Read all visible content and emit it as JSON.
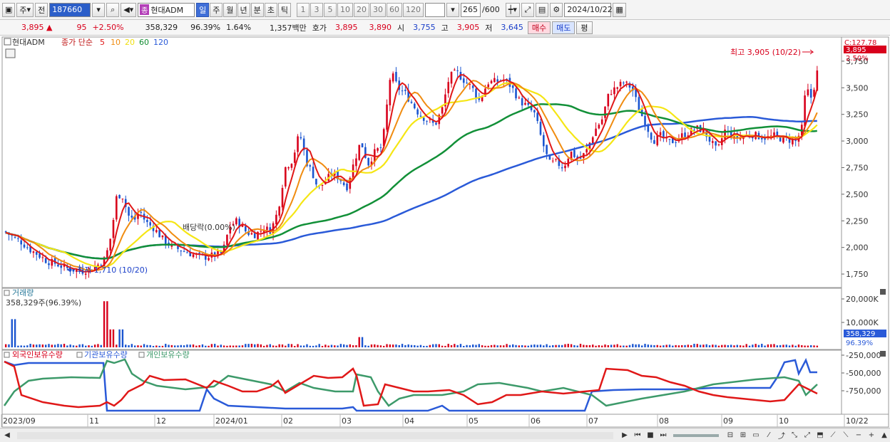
{
  "toolbar": {
    "market": "주",
    "prev": "전",
    "code": "187660",
    "stock_badge": "종",
    "stock_name": "현대ADM",
    "periods": [
      "일",
      "주",
      "월",
      "년",
      "분",
      "초",
      "틱"
    ],
    "active_period": "일",
    "intervals": [
      "1",
      "3",
      "5",
      "10",
      "20",
      "30",
      "60",
      "120"
    ],
    "count": "265",
    "total": "/600",
    "date": "2024/10/22"
  },
  "quote": {
    "price": "3,895",
    "change": "95",
    "change_pct": "+2.50%",
    "volume": "358,329",
    "vol_ratio": "96.39%",
    "turnover": "1.64%",
    "amount": "1,357백만",
    "hoga_label": "호가",
    "ask": "3,895",
    "bid": "3,890",
    "open_label": "시",
    "open": "3,755",
    "high_label": "고",
    "high": "3,905",
    "low_label": "저",
    "low": "3,645",
    "buy": "매수",
    "sell": "매도",
    "eval": "평"
  },
  "legend": {
    "name": "현대ADM",
    "ma_label": "종가 단순",
    "ma": [
      {
        "period": "5",
        "color": "#e01818"
      },
      {
        "period": "10",
        "color": "#f08c10"
      },
      {
        "period": "20",
        "color": "#f0e010"
      },
      {
        "period": "60",
        "color": "#108c30"
      },
      {
        "period": "120",
        "color": "#2a5ad8"
      }
    ]
  },
  "colors": {
    "up": "#d8001c",
    "down": "#1a55d0",
    "ma5": "#e01818",
    "ma10": "#f08c10",
    "ma20": "#f5e614",
    "ma60": "#129038",
    "ma120": "#2a5ad8",
    "foreign": "#e01818",
    "institution": "#2a5ad8",
    "individual": "#3d9a6a"
  },
  "price_panel": {
    "axis_top_label": "C:127.78",
    "current_price_tag": "3,895",
    "current_pct_tag": "2.50%",
    "high_annotation": "최고 3,905 (10/22)",
    "low_annotation": "최저 1,710 (10/20)",
    "dividend_annotation": "배당락(0.00%)",
    "yticks": [
      "3,750",
      "3,500",
      "3,250",
      "3,000",
      "2,750",
      "2,500",
      "2,250",
      "2,000",
      "1,750"
    ],
    "ytick_values": [
      3750,
      3500,
      3250,
      3000,
      2750,
      2500,
      2250,
      2000,
      1750
    ]
  },
  "volume_panel": {
    "title": "거래량",
    "value_label": "358,329주(96.39%)",
    "yticks": [
      "20,000K",
      "10,000K"
    ],
    "current_tag": "358,329",
    "pct_tag": "96.39%"
  },
  "holding_panel": {
    "series": [
      "외국인보유수량",
      "기관보유수량",
      "개인보유수량"
    ],
    "yticks": [
      "-250,000",
      "-500,000",
      "-750,000"
    ]
  },
  "xaxis": {
    "labels": [
      "2023/09",
      "11",
      "12",
      "2024/01",
      "02",
      "03",
      "04",
      "05",
      "06",
      "07",
      "08",
      "09",
      "10",
      "10/22"
    ]
  },
  "chart_data": {
    "type": "candlestick",
    "title": "현대ADM",
    "x_range": [
      "2023/09",
      "2024/10/22"
    ],
    "ylim": [
      1650,
      3950
    ],
    "key_points": [
      {
        "date": "2023/10/20",
        "label": "최저",
        "value": 1710
      },
      {
        "date": "2024/10/22",
        "label": "최고",
        "value": 3905
      }
    ],
    "last": {
      "open": 3755,
      "high": 3905,
      "low": 3645,
      "close": 3895,
      "change": 95,
      "change_pct": 2.5,
      "volume": 358329
    }
  }
}
